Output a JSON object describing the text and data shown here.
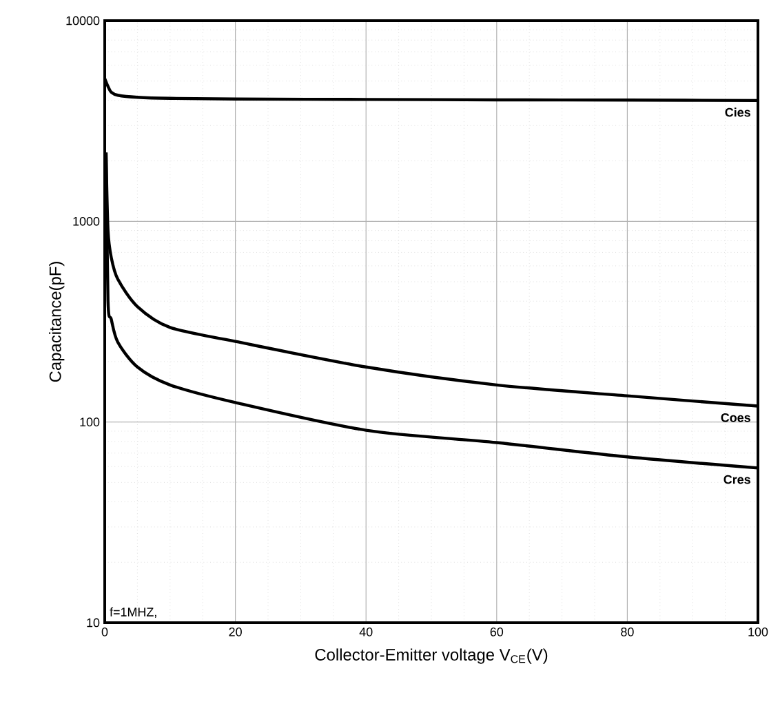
{
  "chart_data": {
    "type": "line",
    "xlabel": "Collector-Emitter voltage V$_{CE}$(V)",
    "ylabel": "Capacitance(pF)",
    "log": "y",
    "grid": true,
    "legend": false,
    "marker": "none",
    "line_style": "solid",
    "xlim": [
      0,
      100
    ],
    "xticks": [
      0,
      20,
      40,
      60,
      80,
      100
    ],
    "ylim": [
      10,
      10000
    ],
    "yticks": [
      10,
      100,
      1000,
      10000
    ],
    "series": [
      {
        "name": "Cies",
        "color": "#000000",
        "x": [
          0,
          0.5,
          1,
          2,
          5,
          10,
          20,
          40,
          60,
          80,
          100
        ],
        "values": [
          5150,
          4700,
          4400,
          4250,
          4150,
          4100,
          4070,
          4050,
          4030,
          4020,
          4000
        ]
      },
      {
        "name": "Coes",
        "color": "#000000",
        "x": [
          0.2,
          0.5,
          1,
          2,
          5,
          10,
          20,
          40,
          60,
          80,
          100
        ],
        "values": [
          2200,
          900,
          660,
          515,
          376,
          296,
          252,
          188,
          153,
          135,
          120
        ]
      },
      {
        "name": "Cres",
        "color": "#000000",
        "x": [
          0.2,
          0.5,
          1,
          2,
          5,
          10,
          20,
          40,
          60,
          80,
          100
        ],
        "values": [
          2200,
          400,
          325,
          250,
          188,
          153,
          125,
          91,
          79,
          67,
          59
        ]
      }
    ],
    "annotations": [
      "f=1MHZ,"
    ]
  }
}
